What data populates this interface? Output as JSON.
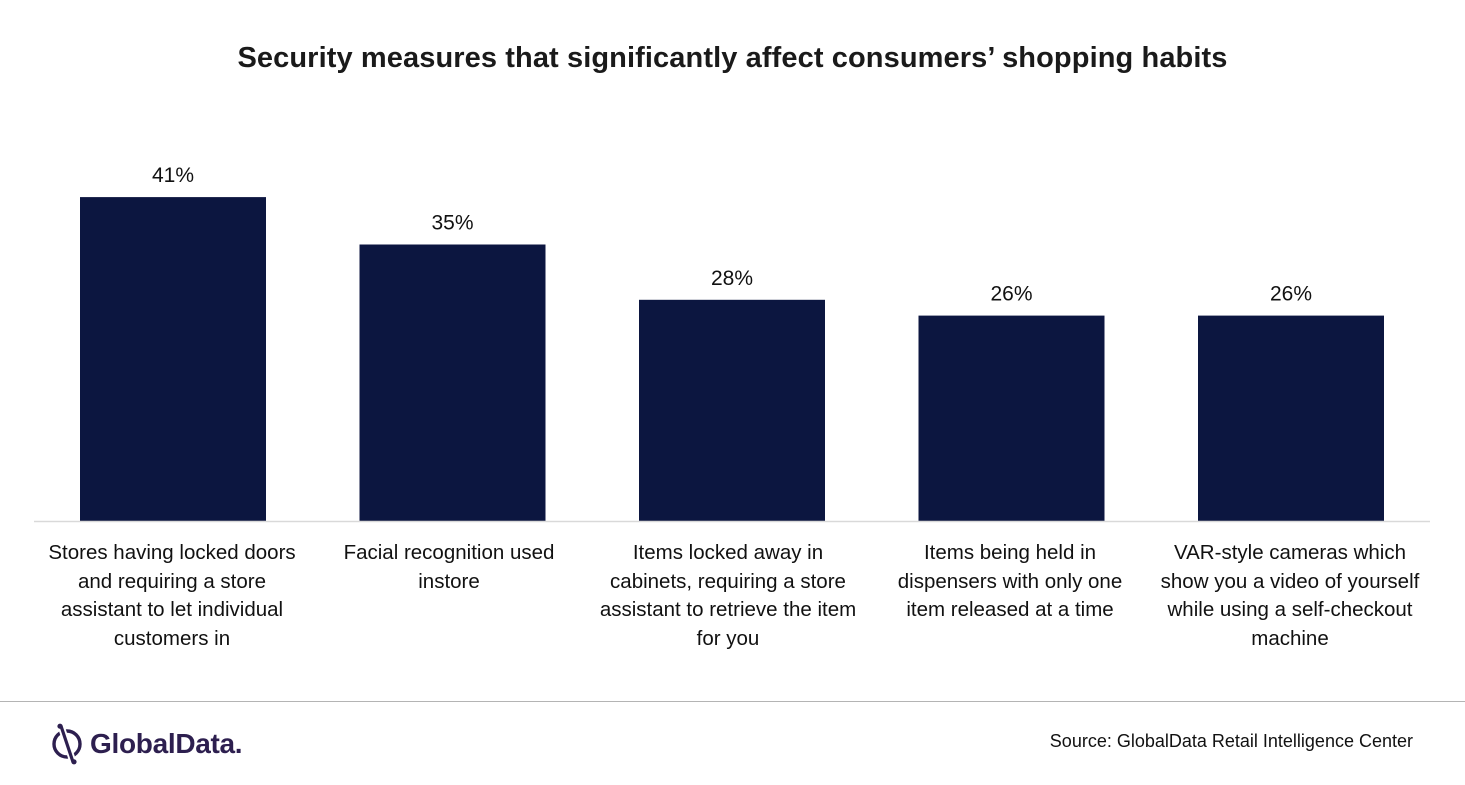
{
  "chart_data": {
    "type": "bar",
    "title": "Security measures that significantly affect consumers’ shopping habits",
    "categories": [
      "Stores having locked doors and requiring a store assistant to let individual customers in",
      "Facial recognition used instore",
      "Items locked away in cabinets, requiring a store assistant to retrieve the item for you",
      "Items being held in dispensers with only one item released at a time",
      "VAR-style cameras which show you a video of yourself while using a self-checkout machine"
    ],
    "values": [
      41,
      35,
      28,
      26,
      26
    ],
    "data_labels": [
      "41%",
      "35%",
      "28%",
      "26%",
      "26%"
    ],
    "unit": "%",
    "xlabel": "",
    "ylabel": "",
    "grid": false,
    "legend": "none",
    "bar_color": "#0c1640"
  },
  "footer": {
    "brand": "GlobalData.",
    "source": "Source: GlobalData Retail Intelligence Center"
  },
  "colors": {
    "bar": "#0c1640",
    "brand": "#2d1f4f",
    "baseline": "#d9d9d9"
  }
}
